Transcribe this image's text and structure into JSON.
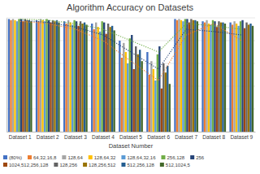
{
  "chart_data": {
    "type": "bar",
    "title": "Algorithm Accuracy on Datasets",
    "x_label": "Dataset Number",
    "categories": [
      "Dataset 1",
      "Dataset 2",
      "Dataset 3",
      "Dataset 4",
      "Dataset 5",
      "Dataset 6",
      "Dataset 7",
      "Dataset 8",
      "Dataset 9"
    ],
    "ylim": [
      0,
      100
    ],
    "yticks": [
      0,
      20,
      40,
      60,
      80,
      100
    ],
    "grid": true,
    "tick_labels": "x",
    "legend": "bottom",
    "series": [
      {
        "name": "(80%)",
        "color": "#4472c4",
        "values": [
          99,
          98,
          97,
          95,
          80,
          70,
          99,
          97,
          96
        ]
      },
      {
        "name": "64,32,16,8",
        "color": "#ed7d31",
        "values": [
          98,
          97,
          95,
          90,
          65,
          50,
          98,
          96,
          94
        ]
      },
      {
        "name": "128,64",
        "color": "#a5a5a5",
        "values": [
          99,
          99,
          98,
          96,
          78,
          62,
          99,
          98,
          97
        ]
      },
      {
        "name": "128,64,32",
        "color": "#ffc000",
        "values": [
          98,
          98,
          96,
          92,
          70,
          55,
          98,
          95,
          95
        ]
      },
      {
        "name": "128,64,32,16",
        "color": "#5b9bd5",
        "values": [
          97,
          97,
          94,
          88,
          60,
          45,
          97,
          94,
          93
        ]
      },
      {
        "name": "256,128",
        "color": "#70ad47",
        "values": [
          99,
          99,
          98,
          97,
          82,
          68,
          99,
          98,
          97
        ]
      },
      {
        "name": "256",
        "color": "#264478",
        "values": [
          99,
          98,
          97,
          96,
          85,
          75,
          99,
          97,
          98
        ]
      },
      {
        "name": "1024,512,256,128",
        "color": "#9e480e",
        "values": [
          97,
          96,
          93,
          86,
          55,
          38,
          96,
          92,
          91
        ]
      },
      {
        "name": "128,256",
        "color": "#636363",
        "values": [
          99,
          98,
          97,
          95,
          75,
          60,
          99,
          97,
          96
        ]
      },
      {
        "name": "128,256,512",
        "color": "#997300",
        "values": [
          98,
          97,
          95,
          92,
          68,
          52,
          98,
          96,
          94
        ]
      },
      {
        "name": "512,256,128",
        "color": "#255e91",
        "values": [
          98,
          98,
          96,
          93,
          72,
          58,
          98,
          96,
          95
        ]
      },
      {
        "name": "512,1024,5",
        "color": "#43682b",
        "values": [
          97,
          96,
          94,
          89,
          62,
          42,
          97,
          95,
          93
        ]
      },
      {
        "type": "line",
        "line_style": "dotted",
        "color": "#70ad47",
        "values": [
          99,
          98,
          95,
          90,
          80,
          70,
          95,
          93,
          90
        ]
      },
      {
        "type": "line",
        "line_style": "dotted",
        "color": "#264478",
        "values": [
          98,
          96,
          92,
          85,
          70,
          55,
          90,
          88,
          85
        ]
      },
      {
        "type": "line",
        "line_style": "dotted",
        "color": "#ed7d31",
        "values": [
          97,
          95,
          90,
          80,
          62,
          45,
          85,
          95,
          80
        ]
      }
    ]
  }
}
